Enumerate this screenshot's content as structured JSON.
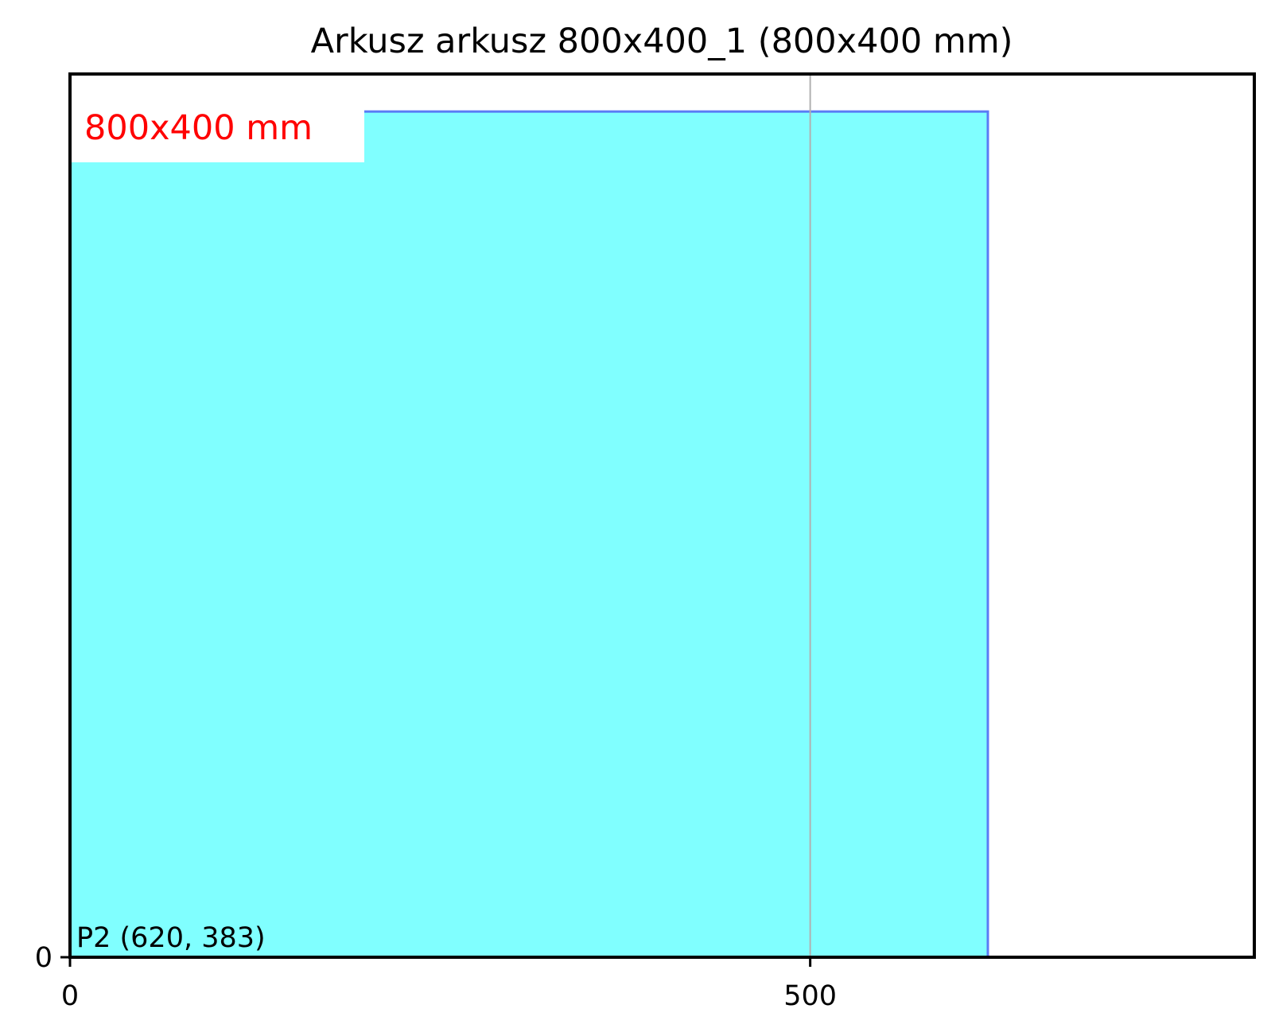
{
  "chart_data": {
    "type": "bar",
    "title": "Arkusz arkusz 800x400_1 (800x400 mm)",
    "xlim": [
      0,
      800
    ],
    "ylim": [
      0,
      400
    ],
    "x_ticks": [
      {
        "value": 0,
        "label": "0"
      },
      {
        "value": 500,
        "label": "500"
      }
    ],
    "y_ticks": [
      {
        "value": 0,
        "label": "0"
      }
    ],
    "grid_x": [
      500
    ],
    "sheet_label": "800x400 mm",
    "pieces": [
      {
        "name": "P2",
        "label": "P2 (620, 383)",
        "x": 0,
        "y": 0,
        "width": 620,
        "height": 383
      }
    ],
    "colors": {
      "piece_fill": "#80ffff",
      "piece_edge": "#5b7cf5",
      "sheet_label": "#ff0000",
      "grid": "#b0b0b0",
      "frame": "#000000"
    }
  }
}
